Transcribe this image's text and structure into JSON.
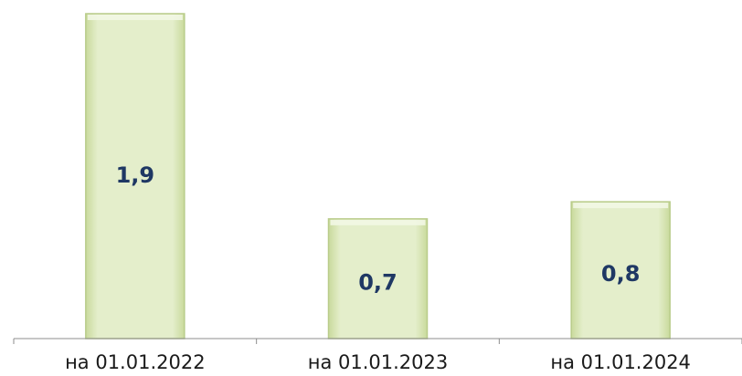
{
  "chart_data": {
    "type": "bar",
    "categories": [
      "на 01.01.2022",
      "на 01.01.2023",
      "на 01.01.2024"
    ],
    "values": [
      1.9,
      0.7,
      0.8
    ],
    "value_labels": [
      "1,9",
      "0,7",
      "0,8"
    ],
    "title": "",
    "xlabel": "",
    "ylabel": "",
    "ylim": [
      0,
      1.9
    ],
    "grid": false,
    "legend": "none",
    "colors": {
      "bar_fill": "#e2edc7",
      "bar_edge": "#b9cc8a",
      "value_text": "#1f3864",
      "axis": "#8c8c8c"
    }
  }
}
